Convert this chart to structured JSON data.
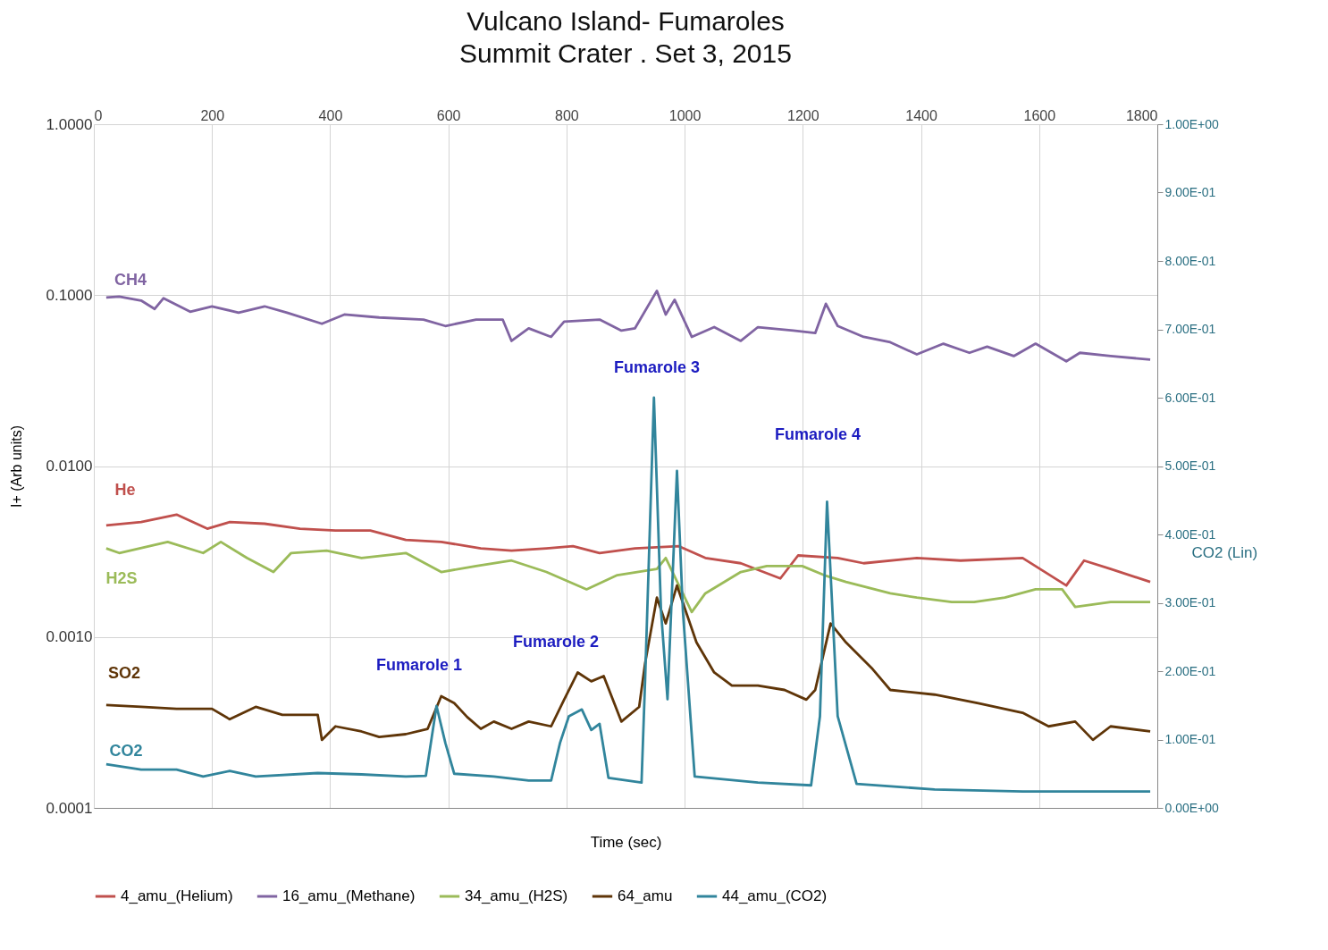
{
  "chart_data": {
    "type": "line",
    "title": "Vulcano Island- Fumaroles",
    "subtitle": "Summit Crater . Set 3, 2015",
    "xlabel": "Time (sec)",
    "ylabel": "I+ (Arb units)",
    "y2label": "CO2  (Lin)",
    "log": "y",
    "grid": true,
    "legend": "bottom",
    "xlim": [
      0,
      1800
    ],
    "xticks": [
      0,
      200,
      400,
      600,
      800,
      1000,
      1200,
      1400,
      1600,
      1800
    ],
    "ylim": [
      0.0001,
      1
    ],
    "yticks": [
      {
        "value": 0.0001,
        "label": "0.0001"
      },
      {
        "value": 0.001,
        "label": "0.0010"
      },
      {
        "value": 0.01,
        "label": "0.0100"
      },
      {
        "value": 0.1,
        "label": "0.1000"
      },
      {
        "value": 1,
        "label": "1.0000"
      }
    ],
    "y2lim": [
      0,
      1
    ],
    "y2ticks": [
      {
        "value": 0,
        "label": "0.00E+00"
      },
      {
        "value": 0.1,
        "label": "1.00E-01"
      },
      {
        "value": 0.2,
        "label": "2.00E-01"
      },
      {
        "value": 0.3,
        "label": "3.00E-01"
      },
      {
        "value": 0.4,
        "label": "4.00E-01"
      },
      {
        "value": 0.5,
        "label": "5.00E-01"
      },
      {
        "value": 0.6,
        "label": "6.00E-01"
      },
      {
        "value": 0.7,
        "label": "7.00E-01"
      },
      {
        "value": 0.8,
        "label": "8.00E-01"
      },
      {
        "value": 0.9,
        "label": "9.00E-01"
      },
      {
        "value": 1,
        "label": "1.00E+00"
      }
    ],
    "series": [
      {
        "name": "4_amu_(Helium)",
        "color": "#c0504d",
        "x": [
          21,
          80,
          140,
          192,
          230,
          289,
          349,
          409,
          468,
          528,
          588,
          655,
          707,
          766,
          811,
          856,
          916,
          990,
          1035,
          1095,
          1162,
          1192,
          1259,
          1303,
          1393,
          1467,
          1572,
          1646,
          1676,
          1721,
          1788
        ],
        "values": [
          0.0045,
          0.0047,
          0.0052,
          0.0043,
          0.0047,
          0.0046,
          0.0043,
          0.0042,
          0.0042,
          0.0037,
          0.0036,
          0.0033,
          0.0032,
          0.0033,
          0.0034,
          0.0031,
          0.0033,
          0.0034,
          0.0029,
          0.0027,
          0.0022,
          0.003,
          0.0029,
          0.0027,
          0.0029,
          0.0028,
          0.0029,
          0.002,
          0.0028,
          0.0025,
          0.0021
        ]
      },
      {
        "name": "16_amu_(Methane)",
        "color": "#8064a2",
        "x": [
          21,
          43,
          80,
          103,
          118,
          163,
          200,
          245,
          289,
          327,
          386,
          424,
          483,
          558,
          595,
          647,
          692,
          707,
          736,
          774,
          796,
          856,
          893,
          916,
          953,
          968,
          983,
          1012,
          1050,
          1095,
          1124,
          1184,
          1221,
          1239,
          1259,
          1303,
          1348,
          1393,
          1438,
          1482,
          1512,
          1557,
          1594,
          1646,
          1669,
          1721,
          1788
        ],
        "values": [
          0.097,
          0.098,
          0.093,
          0.083,
          0.096,
          0.08,
          0.086,
          0.079,
          0.086,
          0.079,
          0.068,
          0.077,
          0.074,
          0.072,
          0.066,
          0.072,
          0.072,
          0.054,
          0.064,
          0.057,
          0.07,
          0.072,
          0.062,
          0.064,
          0.106,
          0.077,
          0.094,
          0.057,
          0.065,
          0.054,
          0.065,
          0.062,
          0.06,
          0.089,
          0.066,
          0.057,
          0.053,
          0.045,
          0.052,
          0.046,
          0.05,
          0.044,
          0.052,
          0.041,
          0.046,
          0.044,
          0.042
        ]
      },
      {
        "name": "34_amu_(H2S)",
        "color": "#9bbb59",
        "x": [
          21,
          43,
          125,
          185,
          215,
          259,
          304,
          334,
          394,
          453,
          528,
          588,
          647,
          707,
          766,
          834,
          886,
          953,
          968,
          1012,
          1035,
          1095,
          1139,
          1199,
          1236,
          1273,
          1348,
          1393,
          1452,
          1490,
          1542,
          1594,
          1639,
          1661,
          1721,
          1788
        ],
        "values": [
          0.0033,
          0.0031,
          0.0036,
          0.0031,
          0.0036,
          0.0029,
          0.0024,
          0.0031,
          0.0032,
          0.0029,
          0.0031,
          0.0024,
          0.0026,
          0.0028,
          0.0024,
          0.0019,
          0.0023,
          0.0025,
          0.0029,
          0.0014,
          0.0018,
          0.0024,
          0.0026,
          0.0026,
          0.0023,
          0.0021,
          0.0018,
          0.0017,
          0.0016,
          0.0016,
          0.0017,
          0.0019,
          0.0019,
          0.0015,
          0.0016,
          0.0016
        ]
      },
      {
        "name": "64_amu",
        "color": "#5f3508",
        "x": [
          21,
          80,
          140,
          200,
          230,
          274,
          319,
          379,
          386,
          409,
          453,
          483,
          528,
          565,
          588,
          610,
          632,
          655,
          677,
          707,
          736,
          774,
          796,
          819,
          842,
          863,
          893,
          923,
          933,
          953,
          968,
          987,
          1020,
          1050,
          1080,
          1124,
          1169,
          1206,
          1221,
          1247,
          1273,
          1318,
          1348,
          1423,
          1497,
          1572,
          1616,
          1661,
          1691,
          1721,
          1788
        ],
        "values": [
          0.0004,
          0.00039,
          0.00038,
          0.00038,
          0.00033,
          0.00039,
          0.00035,
          0.00035,
          0.00025,
          0.0003,
          0.00028,
          0.00026,
          0.00027,
          0.00029,
          0.00045,
          0.00041,
          0.00034,
          0.00029,
          0.00032,
          0.00029,
          0.00032,
          0.0003,
          0.00043,
          0.00062,
          0.00055,
          0.00059,
          0.00032,
          0.00039,
          0.0007,
          0.0017,
          0.0012,
          0.002,
          0.00093,
          0.00062,
          0.00052,
          0.00052,
          0.00049,
          0.00043,
          0.00049,
          0.0012,
          0.00093,
          0.00065,
          0.00049,
          0.00046,
          0.00041,
          0.00036,
          0.0003,
          0.00032,
          0.00025,
          0.0003,
          0.00028
        ]
      },
      {
        "name": "44_amu_(CO2)",
        "color": "#31859c",
        "axis": "y2",
        "x": [
          21,
          80,
          140,
          185,
          230,
          274,
          379,
          453,
          528,
          562,
          580,
          595,
          610,
          677,
          736,
          774,
          789,
          804,
          826,
          842,
          856,
          871,
          927,
          933,
          948,
          960,
          971,
          987,
          997,
          1017,
          1124,
          1214,
          1229,
          1241,
          1259,
          1291,
          1423,
          1572,
          1788
        ],
        "values": [
          0.064,
          0.056,
          0.056,
          0.046,
          0.054,
          0.046,
          0.051,
          0.049,
          0.046,
          0.047,
          0.149,
          0.095,
          0.05,
          0.046,
          0.04,
          0.04,
          0.095,
          0.134,
          0.144,
          0.114,
          0.123,
          0.044,
          0.037,
          0.185,
          0.6,
          0.288,
          0.159,
          0.493,
          0.288,
          0.046,
          0.037,
          0.033,
          0.134,
          0.448,
          0.134,
          0.035,
          0.027,
          0.024,
          0.024
        ]
      }
    ],
    "annotations": [
      "He",
      "CH4",
      "H2S",
      "SO2",
      "CO2",
      "Fumarole 1",
      "Fumarole 2",
      "Fumarole 3",
      "Fumarole 4"
    ]
  }
}
